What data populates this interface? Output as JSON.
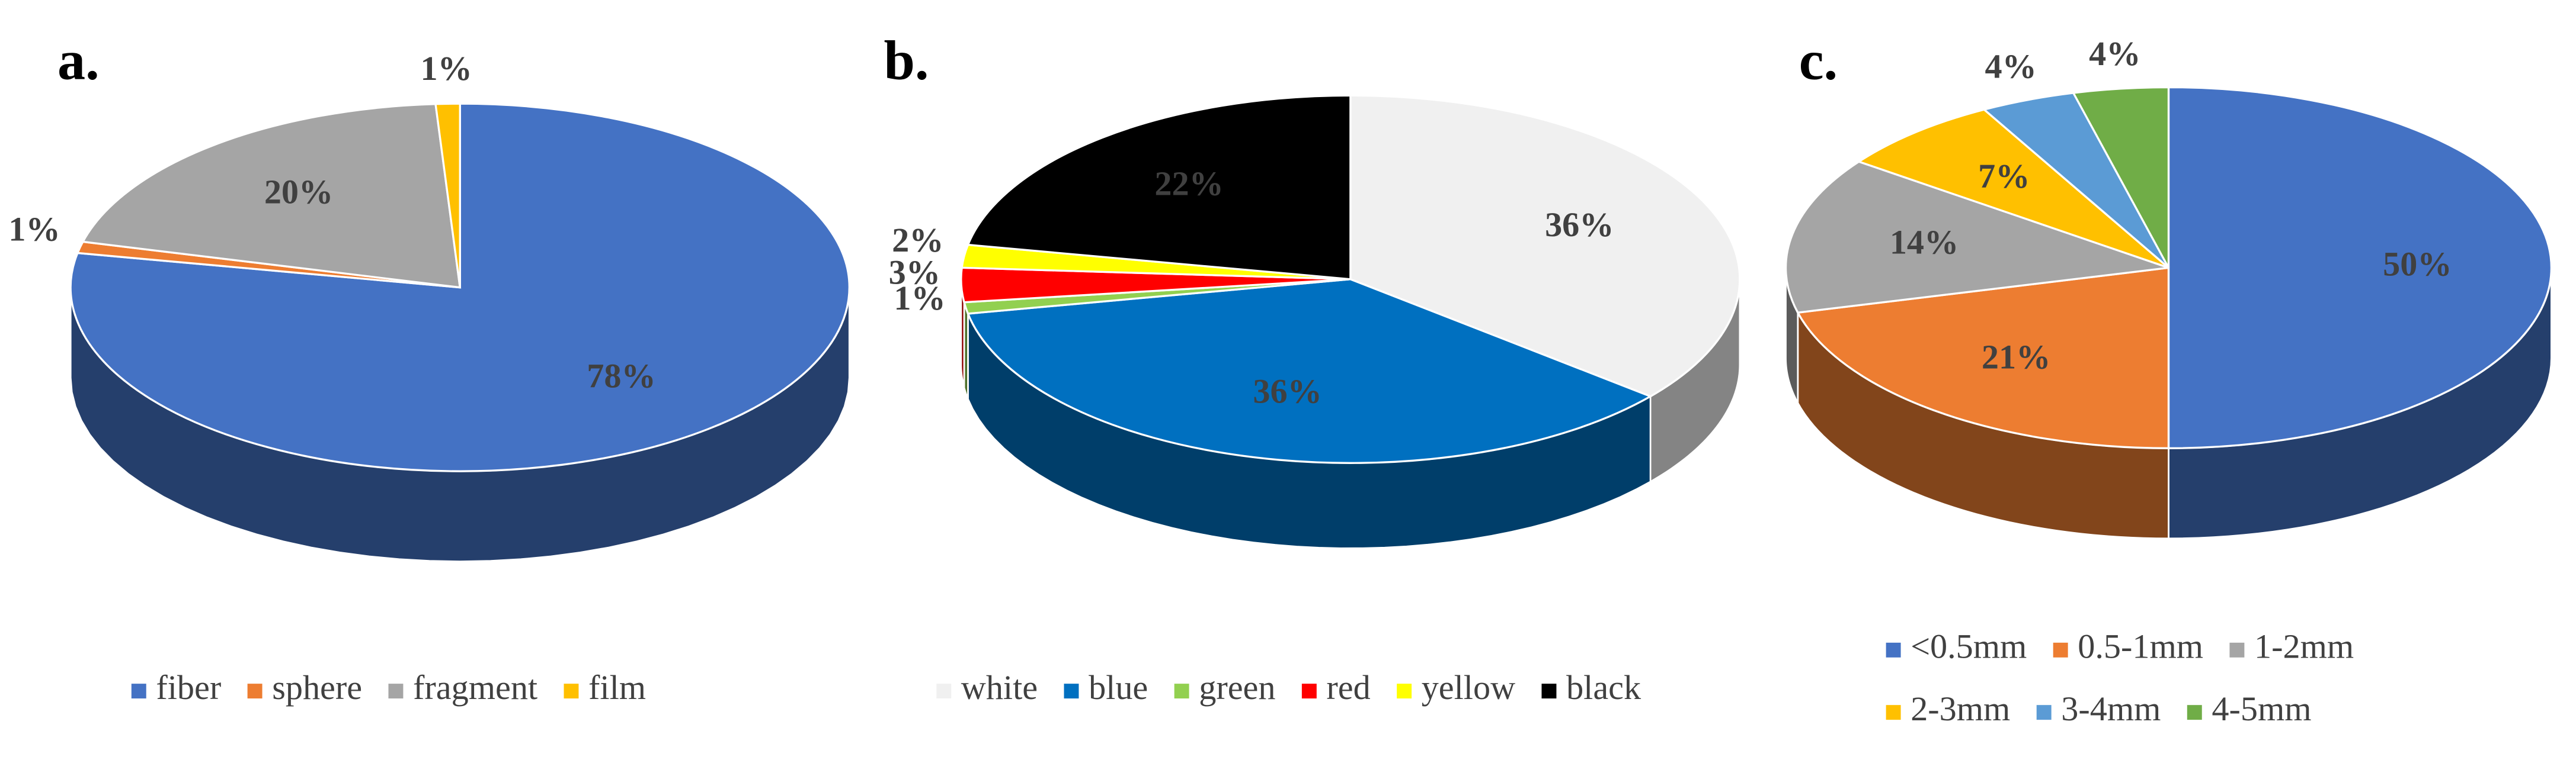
{
  "chart_data": [
    {
      "type": "pie",
      "title": "a.",
      "categories": [
        "fiber",
        "sphere",
        "fragment",
        "film"
      ],
      "values": [
        78,
        1,
        20,
        1
      ],
      "value_labels": [
        "78%",
        "1%",
        "20%",
        "1%"
      ],
      "colors": [
        "#4472c4",
        "#ed7d31",
        "#a5a5a5",
        "#ffc000"
      ]
    },
    {
      "type": "pie",
      "title": "b.",
      "categories": [
        "white",
        "blue",
        "green",
        "red",
        "yellow",
        "black"
      ],
      "values": [
        36,
        36,
        1,
        3,
        2,
        22
      ],
      "value_labels": [
        "36%",
        "36%",
        "1%",
        "3%",
        "2%",
        "22%"
      ],
      "colors": [
        "#f0f0f0",
        "#0070c0",
        "#92d050",
        "#ff0000",
        "#ffff00",
        "#000000"
      ]
    },
    {
      "type": "pie",
      "title": "c.",
      "categories": [
        "<0.5mm",
        "0.5-1mm",
        "1-2mm",
        "2-3mm",
        "3-4mm",
        "4-5mm"
      ],
      "values": [
        50,
        21,
        14,
        7,
        4,
        4
      ],
      "value_labels": [
        "50%",
        "21%",
        "14%",
        "7%",
        "4%",
        "4%"
      ],
      "colors": [
        "#4472c4",
        "#ed7d31",
        "#a5a5a5",
        "#ffc000",
        "#5b9bd5",
        "#70ad47"
      ]
    }
  ]
}
